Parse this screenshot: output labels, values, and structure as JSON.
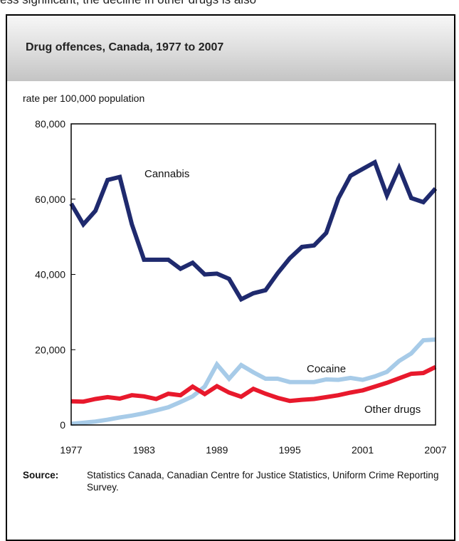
{
  "page": {
    "top_snippet": "ess significant, the decline in other drugs is also"
  },
  "header": {
    "title": "Drug offences, Canada, 1977 to 2007"
  },
  "unit_label": "rate per 100,000 population",
  "source": {
    "key": "Source:",
    "text": "Statistics Canada, Canadian Centre for Justice Statistics, Uniform Crime Reporting Survey."
  },
  "chart_data": {
    "type": "line",
    "title": "Drug offences, Canada, 1977 to 2007",
    "ylabel": "rate per 100,000 population",
    "xlim": [
      1977,
      2007
    ],
    "ylim": [
      0,
      80000
    ],
    "x_ticks": [
      "1977",
      "1983",
      "1989",
      "1995",
      "2001",
      "2007"
    ],
    "y_ticks": [
      "0",
      "20,000",
      "40,000",
      "60,000",
      "80,000"
    ],
    "grid": false,
    "legend": "inline labels",
    "x": [
      1977,
      1978,
      1979,
      1980,
      1981,
      1982,
      1983,
      1984,
      1985,
      1986,
      1987,
      1988,
      1989,
      1990,
      1991,
      1992,
      1993,
      1994,
      1995,
      1996,
      1997,
      1998,
      1999,
      2000,
      2001,
      2002,
      2003,
      2004,
      2005,
      2006,
      2007
    ],
    "series": [
      {
        "name": "Cannabis",
        "color": "#1f2a6e",
        "values": [
          58800,
          53300,
          56900,
          65100,
          65900,
          53300,
          43900,
          43900,
          43900,
          41500,
          43100,
          40000,
          40200,
          38800,
          33400,
          35000,
          35800,
          40300,
          44300,
          47300,
          47700,
          51000,
          60200,
          66200,
          68000,
          69800,
          61000,
          68300,
          60300,
          59200,
          62800
        ]
      },
      {
        "name": "Cocaine",
        "color": "#a7cbe8",
        "values": [
          300,
          600,
          900,
          1400,
          2000,
          2500,
          3100,
          3900,
          4700,
          6100,
          7600,
          10200,
          16100,
          12300,
          15900,
          14000,
          12300,
          12300,
          11400,
          11400,
          11400,
          12100,
          12000,
          12500,
          12000,
          12900,
          14100,
          17000,
          19000,
          22500,
          22700
        ]
      },
      {
        "name": "Other drugs",
        "color": "#e8192c",
        "values": [
          6300,
          6200,
          6900,
          7400,
          7000,
          7900,
          7600,
          6900,
          8300,
          7900,
          10200,
          8200,
          10300,
          8600,
          7500,
          9600,
          8300,
          7200,
          6400,
          6700,
          6900,
          7400,
          7900,
          8600,
          9200,
          10200,
          11200,
          12400,
          13600,
          13800,
          15400
        ]
      }
    ],
    "labels": {
      "Cannabis": "Cannabis",
      "Cocaine": "Cocaine",
      "Other drugs": "Other drugs"
    }
  }
}
